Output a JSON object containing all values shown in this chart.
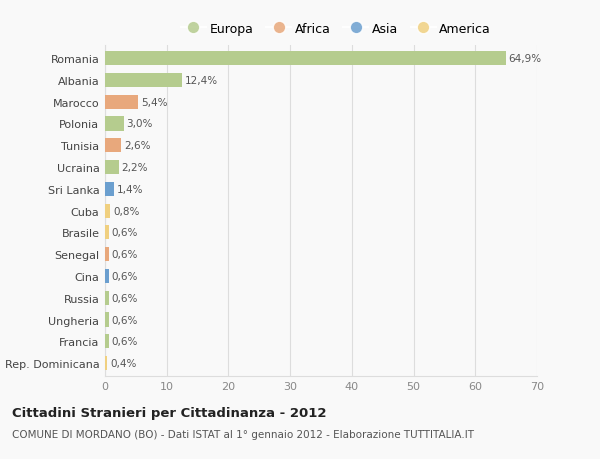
{
  "countries": [
    "Romania",
    "Albania",
    "Marocco",
    "Polonia",
    "Tunisia",
    "Ucraina",
    "Sri Lanka",
    "Cuba",
    "Brasile",
    "Senegal",
    "Cina",
    "Russia",
    "Ungheria",
    "Francia",
    "Rep. Dominicana"
  ],
  "values": [
    64.9,
    12.4,
    5.4,
    3.0,
    2.6,
    2.2,
    1.4,
    0.8,
    0.6,
    0.6,
    0.6,
    0.6,
    0.6,
    0.6,
    0.4
  ],
  "labels": [
    "64,9%",
    "12,4%",
    "5,4%",
    "3,0%",
    "2,6%",
    "2,2%",
    "1,4%",
    "0,8%",
    "0,6%",
    "0,6%",
    "0,6%",
    "0,6%",
    "0,6%",
    "0,6%",
    "0,4%"
  ],
  "colors": [
    "#b5cc8e",
    "#b5cc8e",
    "#e8a87c",
    "#b5cc8e",
    "#e8a87c",
    "#b5cc8e",
    "#6b9fcf",
    "#f0d080",
    "#f0d080",
    "#e8a87c",
    "#6b9fcf",
    "#b5cc8e",
    "#b5cc8e",
    "#b5cc8e",
    "#f0d080"
  ],
  "legend_labels": [
    "Europa",
    "Africa",
    "Asia",
    "America"
  ],
  "legend_colors": [
    "#b5cc8e",
    "#e8a87c",
    "#6b9fcf",
    "#f0d080"
  ],
  "title": "Cittadini Stranieri per Cittadinanza - 2012",
  "subtitle": "COMUNE DI MORDANO (BO) - Dati ISTAT al 1° gennaio 2012 - Elaborazione TUTTITALIA.IT",
  "xlim": [
    0,
    70
  ],
  "xticks": [
    0,
    10,
    20,
    30,
    40,
    50,
    60,
    70
  ],
  "background_color": "#f9f9f9",
  "grid_color": "#dddddd",
  "bar_height": 0.65
}
